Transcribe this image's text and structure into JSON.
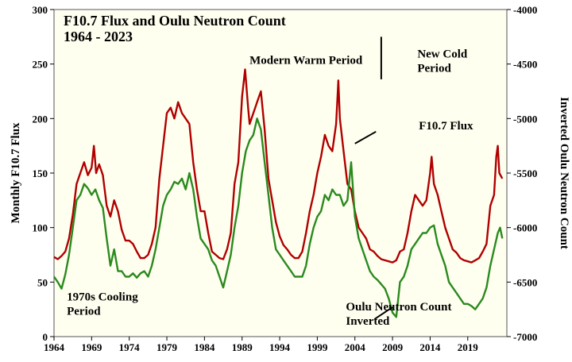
{
  "chart_data": {
    "type": "line",
    "title": [
      "F10.7 Flux and Oulu Neutron Count",
      "1964 - 2023"
    ],
    "ylabel_left": "Monthly F10.7 Flux",
    "ylabel_right": "Inverted Oulu Neutron Count",
    "xlim": [
      1964,
      2024.2
    ],
    "ylim_left": [
      0,
      300
    ],
    "ylim_right": [
      -4000,
      -7000
    ],
    "x_ticks": [
      "1964",
      "1969",
      "1974",
      "1979",
      "1984",
      "1989",
      "1994",
      "1999",
      "2004",
      "2009",
      "2014",
      "2019"
    ],
    "y_ticks_left": [
      "0",
      "50",
      "100",
      "150",
      "200",
      "250",
      "300"
    ],
    "y_ticks_right": [
      "-4000",
      "-4500",
      "-5000",
      "-5500",
      "-6000",
      "-6500",
      "-7000"
    ],
    "grid": false,
    "background": "#fffff0",
    "series": [
      {
        "name": "F10.7 Flux",
        "axis": "left",
        "color": "#b00000",
        "points": [
          [
            1964.0,
            73
          ],
          [
            1964.5,
            71
          ],
          [
            1965.0,
            74
          ],
          [
            1965.5,
            78
          ],
          [
            1966.0,
            90
          ],
          [
            1966.5,
            112
          ],
          [
            1967.0,
            140
          ],
          [
            1967.5,
            150
          ],
          [
            1968.0,
            160
          ],
          [
            1968.5,
            148
          ],
          [
            1969.0,
            155
          ],
          [
            1969.3,
            175
          ],
          [
            1969.6,
            150
          ],
          [
            1970.0,
            158
          ],
          [
            1970.5,
            148
          ],
          [
            1971.0,
            120
          ],
          [
            1971.5,
            110
          ],
          [
            1972.0,
            125
          ],
          [
            1972.5,
            115
          ],
          [
            1973.0,
            98
          ],
          [
            1973.5,
            88
          ],
          [
            1974.0,
            88
          ],
          [
            1974.5,
            85
          ],
          [
            1975.0,
            78
          ],
          [
            1975.5,
            72
          ],
          [
            1976.0,
            72
          ],
          [
            1976.5,
            75
          ],
          [
            1977.0,
            85
          ],
          [
            1977.5,
            100
          ],
          [
            1978.0,
            145
          ],
          [
            1978.5,
            175
          ],
          [
            1979.0,
            205
          ],
          [
            1979.5,
            210
          ],
          [
            1980.0,
            200
          ],
          [
            1980.5,
            215
          ],
          [
            1981.0,
            205
          ],
          [
            1981.5,
            200
          ],
          [
            1982.0,
            195
          ],
          [
            1982.5,
            160
          ],
          [
            1983.0,
            135
          ],
          [
            1983.5,
            115
          ],
          [
            1984.0,
            115
          ],
          [
            1984.5,
            95
          ],
          [
            1985.0,
            78
          ],
          [
            1985.5,
            75
          ],
          [
            1986.0,
            72
          ],
          [
            1986.5,
            71
          ],
          [
            1987.0,
            80
          ],
          [
            1987.5,
            95
          ],
          [
            1988.0,
            140
          ],
          [
            1988.5,
            160
          ],
          [
            1989.0,
            220
          ],
          [
            1989.4,
            245
          ],
          [
            1989.8,
            210
          ],
          [
            1990.0,
            195
          ],
          [
            1990.5,
            205
          ],
          [
            1991.0,
            215
          ],
          [
            1991.5,
            225
          ],
          [
            1992.0,
            190
          ],
          [
            1992.5,
            145
          ],
          [
            1993.0,
            125
          ],
          [
            1993.5,
            105
          ],
          [
            1994.0,
            92
          ],
          [
            1994.5,
            84
          ],
          [
            1995.0,
            80
          ],
          [
            1995.5,
            75
          ],
          [
            1996.0,
            72
          ],
          [
            1996.5,
            72
          ],
          [
            1997.0,
            78
          ],
          [
            1997.5,
            95
          ],
          [
            1998.0,
            115
          ],
          [
            1998.5,
            130
          ],
          [
            1999.0,
            150
          ],
          [
            1999.5,
            165
          ],
          [
            2000.0,
            185
          ],
          [
            2000.5,
            175
          ],
          [
            2001.0,
            170
          ],
          [
            2001.5,
            195
          ],
          [
            2001.8,
            235
          ],
          [
            2002.0,
            200
          ],
          [
            2002.5,
            170
          ],
          [
            2003.0,
            140
          ],
          [
            2003.5,
            135
          ],
          [
            2004.0,
            115
          ],
          [
            2004.5,
            100
          ],
          [
            2005.0,
            95
          ],
          [
            2005.5,
            90
          ],
          [
            2006.0,
            80
          ],
          [
            2006.5,
            78
          ],
          [
            2007.0,
            74
          ],
          [
            2007.5,
            71
          ],
          [
            2008.0,
            70
          ],
          [
            2008.5,
            69
          ],
          [
            2009.0,
            68
          ],
          [
            2009.5,
            70
          ],
          [
            2010.0,
            78
          ],
          [
            2010.5,
            80
          ],
          [
            2011.0,
            95
          ],
          [
            2011.5,
            115
          ],
          [
            2012.0,
            130
          ],
          [
            2012.5,
            125
          ],
          [
            2013.0,
            120
          ],
          [
            2013.5,
            125
          ],
          [
            2014.0,
            150
          ],
          [
            2014.2,
            165
          ],
          [
            2014.5,
            140
          ],
          [
            2015.0,
            130
          ],
          [
            2015.5,
            115
          ],
          [
            2016.0,
            100
          ],
          [
            2016.5,
            90
          ],
          [
            2017.0,
            80
          ],
          [
            2017.5,
            77
          ],
          [
            2018.0,
            72
          ],
          [
            2018.5,
            70
          ],
          [
            2019.0,
            69
          ],
          [
            2019.5,
            68
          ],
          [
            2020.0,
            70
          ],
          [
            2020.5,
            72
          ],
          [
            2021.0,
            78
          ],
          [
            2021.5,
            85
          ],
          [
            2022.0,
            120
          ],
          [
            2022.5,
            130
          ],
          [
            2022.8,
            165
          ],
          [
            2023.0,
            175
          ],
          [
            2023.2,
            150
          ],
          [
            2023.6,
            145
          ]
        ]
      },
      {
        "name": "Oulu Neutron Count Inverted",
        "axis": "right",
        "color": "#2a8a1e",
        "points": [
          [
            1964.0,
            -6450
          ],
          [
            1964.5,
            -6500
          ],
          [
            1965.0,
            -6560
          ],
          [
            1965.5,
            -6430
          ],
          [
            1966.0,
            -6250
          ],
          [
            1966.5,
            -6000
          ],
          [
            1967.0,
            -5750
          ],
          [
            1967.5,
            -5700
          ],
          [
            1968.0,
            -5600
          ],
          [
            1968.5,
            -5640
          ],
          [
            1969.0,
            -5700
          ],
          [
            1969.5,
            -5650
          ],
          [
            1970.0,
            -5750
          ],
          [
            1970.5,
            -5820
          ],
          [
            1971.0,
            -6100
          ],
          [
            1971.5,
            -6350
          ],
          [
            1972.0,
            -6200
          ],
          [
            1972.5,
            -6400
          ],
          [
            1973.0,
            -6400
          ],
          [
            1973.5,
            -6450
          ],
          [
            1974.0,
            -6450
          ],
          [
            1974.5,
            -6420
          ],
          [
            1975.0,
            -6460
          ],
          [
            1975.5,
            -6420
          ],
          [
            1976.0,
            -6400
          ],
          [
            1976.5,
            -6450
          ],
          [
            1977.0,
            -6350
          ],
          [
            1977.5,
            -6200
          ],
          [
            1978.0,
            -6000
          ],
          [
            1978.5,
            -5800
          ],
          [
            1979.0,
            -5700
          ],
          [
            1979.5,
            -5650
          ],
          [
            1980.0,
            -5580
          ],
          [
            1980.5,
            -5600
          ],
          [
            1981.0,
            -5550
          ],
          [
            1981.5,
            -5650
          ],
          [
            1982.0,
            -5500
          ],
          [
            1982.5,
            -5650
          ],
          [
            1983.0,
            -5900
          ],
          [
            1983.5,
            -6100
          ],
          [
            1984.0,
            -6150
          ],
          [
            1984.5,
            -6200
          ],
          [
            1985.0,
            -6300
          ],
          [
            1985.5,
            -6350
          ],
          [
            1986.0,
            -6450
          ],
          [
            1986.5,
            -6550
          ],
          [
            1987.0,
            -6400
          ],
          [
            1987.5,
            -6250
          ],
          [
            1988.0,
            -6000
          ],
          [
            1988.5,
            -5800
          ],
          [
            1989.0,
            -5500
          ],
          [
            1989.5,
            -5300
          ],
          [
            1990.0,
            -5200
          ],
          [
            1990.5,
            -5150
          ],
          [
            1991.0,
            -5000
          ],
          [
            1991.5,
            -5100
          ],
          [
            1992.0,
            -5400
          ],
          [
            1992.5,
            -5700
          ],
          [
            1993.0,
            -6000
          ],
          [
            1993.5,
            -6200
          ],
          [
            1994.0,
            -6250
          ],
          [
            1994.5,
            -6300
          ],
          [
            1995.0,
            -6350
          ],
          [
            1995.5,
            -6400
          ],
          [
            1996.0,
            -6450
          ],
          [
            1996.5,
            -6450
          ],
          [
            1997.0,
            -6450
          ],
          [
            1997.5,
            -6350
          ],
          [
            1998.0,
            -6150
          ],
          [
            1998.5,
            -6000
          ],
          [
            1999.0,
            -5900
          ],
          [
            1999.5,
            -5850
          ],
          [
            2000.0,
            -5700
          ],
          [
            2000.5,
            -5750
          ],
          [
            2001.0,
            -5650
          ],
          [
            2001.5,
            -5700
          ],
          [
            2002.0,
            -5700
          ],
          [
            2002.5,
            -5800
          ],
          [
            2003.0,
            -5750
          ],
          [
            2003.5,
            -5400
          ],
          [
            2004.0,
            -5900
          ],
          [
            2004.5,
            -6100
          ],
          [
            2005.0,
            -6200
          ],
          [
            2005.5,
            -6300
          ],
          [
            2006.0,
            -6400
          ],
          [
            2006.5,
            -6450
          ],
          [
            2007.0,
            -6480
          ],
          [
            2007.5,
            -6520
          ],
          [
            2008.0,
            -6560
          ],
          [
            2008.5,
            -6650
          ],
          [
            2009.0,
            -6780
          ],
          [
            2009.5,
            -6820
          ],
          [
            2010.0,
            -6500
          ],
          [
            2010.5,
            -6450
          ],
          [
            2011.0,
            -6350
          ],
          [
            2011.5,
            -6200
          ],
          [
            2012.0,
            -6150
          ],
          [
            2012.5,
            -6100
          ],
          [
            2013.0,
            -6050
          ],
          [
            2013.5,
            -6050
          ],
          [
            2014.0,
            -6000
          ],
          [
            2014.5,
            -5980
          ],
          [
            2015.0,
            -6150
          ],
          [
            2015.5,
            -6250
          ],
          [
            2016.0,
            -6350
          ],
          [
            2016.5,
            -6500
          ],
          [
            2017.0,
            -6550
          ],
          [
            2017.5,
            -6600
          ],
          [
            2018.0,
            -6650
          ],
          [
            2018.5,
            -6700
          ],
          [
            2019.0,
            -6700
          ],
          [
            2019.5,
            -6720
          ],
          [
            2020.0,
            -6750
          ],
          [
            2020.5,
            -6700
          ],
          [
            2021.0,
            -6650
          ],
          [
            2021.5,
            -6550
          ],
          [
            2022.0,
            -6350
          ],
          [
            2022.5,
            -6200
          ],
          [
            2023.0,
            -6050
          ],
          [
            2023.3,
            -6000
          ],
          [
            2023.6,
            -6100
          ]
        ]
      }
    ],
    "annotations": [
      {
        "lines": [
          "Modern Warm Period"
        ],
        "x": 1997.5,
        "y_left": 250
      },
      {
        "lines": [
          "New Cold",
          "Period"
        ],
        "x": 2012.3,
        "y_left": 256
      },
      {
        "lines": [
          "F10.7 Flux"
        ],
        "x": 2012.5,
        "y_left": 190
      },
      {
        "lines": [
          "1970s Cooling",
          "Period"
        ],
        "x": 1965.7,
        "y_left": 33
      },
      {
        "lines": [
          "Oulu Neutron Count",
          "Inverted"
        ],
        "x": 2002.8,
        "y_left": 24
      }
    ],
    "markers": [
      {
        "type": "vertical-line",
        "x": 2007.5,
        "y_from": 275,
        "y_to": 236
      },
      {
        "type": "pointer",
        "x1": 2004.0,
        "y1": 177,
        "x2": 2006.8,
        "y2": 188
      },
      {
        "type": "pointer",
        "x1": 2006.6,
        "y1": 16,
        "x2": 2009.0,
        "y2": 27
      }
    ]
  }
}
